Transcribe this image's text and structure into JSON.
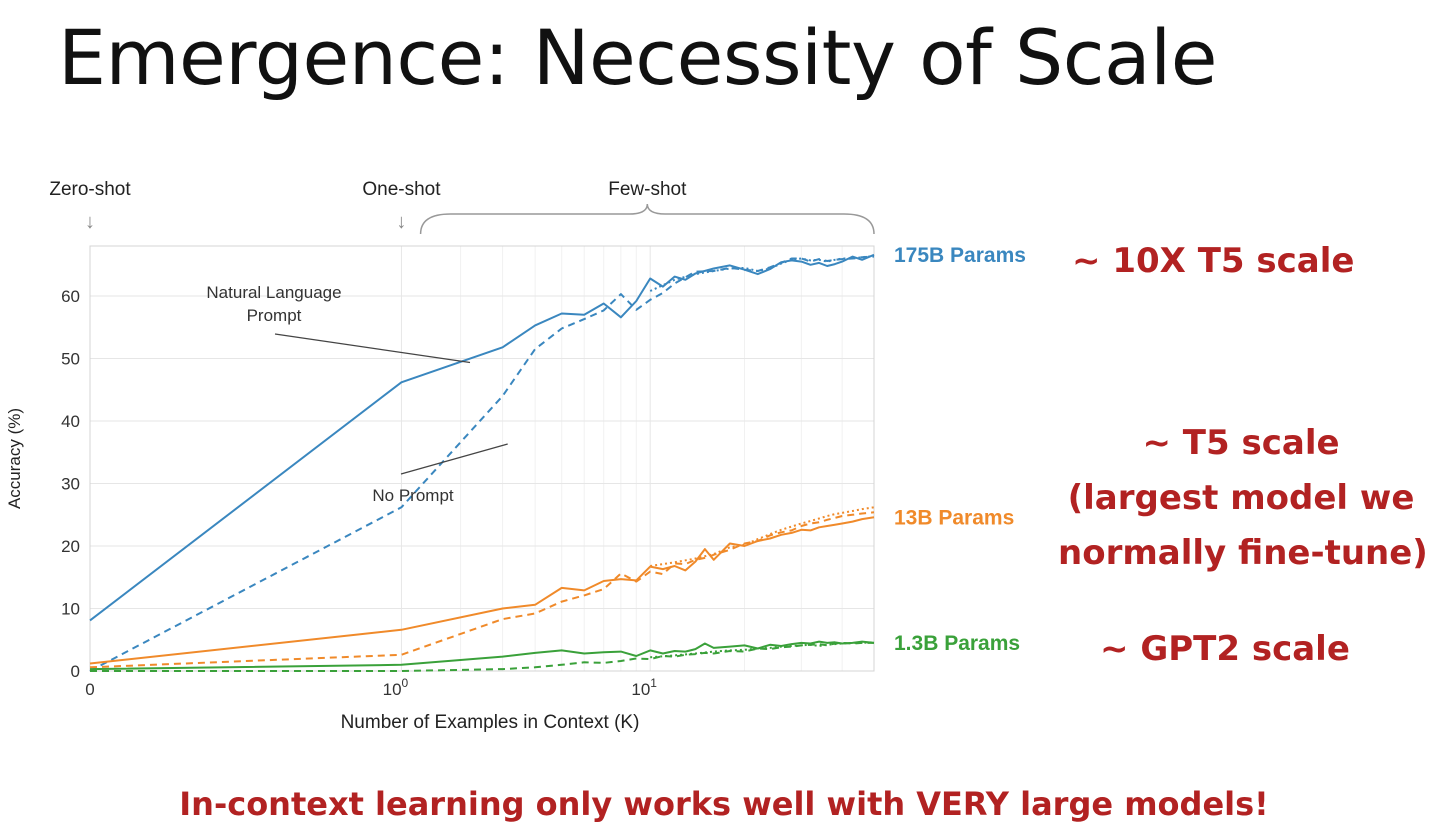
{
  "slide": {
    "title": "Emergence: Necessity of Scale",
    "footer": "In-context learning only works well with VERY large models!",
    "annotations": {
      "scale_175b": "~ 10X T5 scale",
      "scale_13b_lines": [
        "~ T5 scale",
        "(largest model we",
        "normally fine-tune)"
      ],
      "scale_1_3b": "~ GPT2 scale"
    },
    "colors": {
      "annotation": "#b22222"
    }
  },
  "chart_data": {
    "type": "line",
    "xlabel": "Number of Examples in Context  (K)",
    "ylabel": "Accuracy (%)",
    "x_scale": "symlog",
    "xlim": [
      0,
      50
    ],
    "ylim": [
      0,
      68
    ],
    "yticks": [
      0,
      10,
      20,
      30,
      40,
      50,
      60
    ],
    "xtick_labels": [
      {
        "value": 0,
        "label": "0"
      },
      {
        "value": 1,
        "label": "10",
        "sup": "0"
      },
      {
        "value": 10,
        "label": "10",
        "sup": "1"
      }
    ],
    "grid": true,
    "shot_labels": [
      {
        "label": "Zero-shot",
        "x": 0,
        "marker": "↓"
      },
      {
        "label": "One-shot",
        "x": 1,
        "marker": "↓"
      },
      {
        "label": "Few-shot",
        "x_range": [
          2,
          50
        ]
      }
    ],
    "text_annotations": [
      {
        "text_lines": [
          "Natural Language",
          "Prompt"
        ],
        "points_to": {
          "x": 2.2,
          "y": 50
        }
      },
      {
        "text_lines": [
          "No Prompt"
        ],
        "points_to": {
          "x": 3.2,
          "y": 36
        }
      }
    ],
    "model_groups": [
      {
        "name": "175B Params",
        "color": "#3a87bf",
        "series": [
          {
            "style": "solid",
            "x": [
              0,
              1,
              3,
              4,
              5,
              6,
              7,
              8,
              9,
              10,
              11,
              12,
              13,
              14,
              16,
              18,
              20,
              22,
              24,
              26,
              28,
              30,
              32,
              34,
              36,
              38,
              40,
              43,
              46,
              50
            ],
            "y": [
              8.1,
              46.2,
              51.8,
              55.3,
              57.2,
              57.0,
              58.8,
              56.6,
              59.2,
              62.8,
              61.5,
              63.1,
              62.6,
              63.6,
              64.4,
              64.9,
              64.2,
              63.5,
              64.3,
              65.4,
              65.7,
              65.5,
              65.0,
              65.3,
              64.8,
              65.1,
              65.5,
              66.3,
              65.8,
              66.6
            ]
          },
          {
            "style": "dashed",
            "x": [
              0,
              1,
              3,
              4,
              5,
              6,
              7,
              8,
              9,
              10,
              11,
              12,
              13,
              14,
              16,
              18,
              20,
              22,
              24,
              26,
              28,
              30,
              32,
              34,
              36,
              38,
              40,
              43,
              46,
              50
            ],
            "y": [
              0.0,
              26.2,
              44.0,
              51.5,
              54.8,
              56.3,
              57.7,
              60.3,
              57.8,
              59.4,
              60.5,
              62.0,
              63.0,
              63.9,
              64.0,
              64.5,
              64.2,
              64.0,
              64.6,
              65.3,
              66.0,
              66.0,
              65.5,
              65.9,
              65.6,
              65.8,
              65.9,
              66.0,
              66.2,
              66.3
            ]
          },
          {
            "style": "dotted",
            "x": [
              10,
              12,
              14,
              16,
              18,
              20,
              22,
              24,
              26,
              28,
              30,
              32,
              34,
              36,
              38,
              40,
              43,
              46,
              50
            ],
            "y": [
              60.8,
              62.6,
              63.5,
              64.0,
              64.4,
              64.5,
              64.0,
              64.4,
              65.2,
              65.8,
              66.0,
              65.7,
              65.8,
              65.5,
              65.8,
              66.0,
              66.0,
              66.2,
              66.4
            ]
          }
        ]
      },
      {
        "name": "13B Params",
        "color": "#f08a2a",
        "series": [
          {
            "style": "solid",
            "x": [
              0,
              1,
              3,
              4,
              5,
              6,
              7,
              8,
              9,
              10,
              11,
              12,
              13,
              14,
              15,
              16,
              18,
              20,
              22,
              24,
              26,
              28,
              30,
              32,
              34,
              36,
              38,
              40,
              43,
              46,
              50
            ],
            "y": [
              1.2,
              6.6,
              10.0,
              10.6,
              13.3,
              12.9,
              14.4,
              14.7,
              14.5,
              16.7,
              16.3,
              16.8,
              16.1,
              17.5,
              19.5,
              17.8,
              20.4,
              20.0,
              20.8,
              21.2,
              21.8,
              22.1,
              22.6,
              22.5,
              23.0,
              23.2,
              23.4,
              23.6,
              23.9,
              24.3,
              24.6
            ]
          },
          {
            "style": "dashed",
            "x": [
              0,
              1,
              3,
              4,
              5,
              6,
              7,
              8,
              9,
              10,
              11,
              12,
              13,
              14,
              15,
              16,
              18,
              20,
              22,
              24,
              26,
              28,
              30,
              32,
              34,
              36,
              38,
              40,
              43,
              46,
              50
            ],
            "y": [
              0.6,
              2.6,
              8.3,
              9.2,
              11.1,
              12.1,
              13.1,
              15.6,
              14.3,
              15.9,
              15.5,
              17.2,
              17.1,
              17.8,
              18.1,
              18.6,
              19.4,
              20.4,
              20.8,
              21.7,
              22.2,
              22.5,
              23.2,
              23.6,
              23.8,
              24.2,
              24.5,
              24.8,
              25.0,
              25.2,
              25.4
            ]
          },
          {
            "style": "dotted",
            "x": [
              10,
              12,
              14,
              16,
              18,
              20,
              22,
              24,
              26,
              28,
              30,
              32,
              34,
              36,
              38,
              40,
              43,
              46,
              50
            ],
            "y": [
              16.8,
              17.4,
              18.0,
              18.7,
              19.8,
              20.2,
              21.1,
              21.9,
              22.6,
              23.1,
              23.6,
              24.0,
              24.4,
              24.8,
              25.1,
              25.3,
              25.6,
              25.9,
              26.2
            ]
          }
        ]
      },
      {
        "name": "1.3B Params",
        "color": "#3aa13a",
        "series": [
          {
            "style": "solid",
            "x": [
              0,
              1,
              3,
              4,
              5,
              6,
              7,
              8,
              9,
              10,
              11,
              12,
              13,
              14,
              15,
              16,
              18,
              20,
              22,
              24,
              26,
              28,
              30,
              32,
              34,
              36,
              38,
              40,
              43,
              46,
              50
            ],
            "y": [
              0.3,
              1.0,
              2.3,
              2.9,
              3.3,
              2.8,
              3.0,
              3.1,
              2.4,
              3.3,
              2.8,
              3.2,
              3.1,
              3.5,
              4.4,
              3.7,
              3.9,
              4.1,
              3.6,
              4.2,
              4.0,
              4.3,
              4.5,
              4.4,
              4.7,
              4.5,
              4.6,
              4.4,
              4.5,
              4.7,
              4.5
            ]
          },
          {
            "style": "dashed",
            "x": [
              0,
              1,
              3,
              4,
              5,
              6,
              7,
              8,
              9,
              10,
              11,
              12,
              13,
              14,
              15,
              16,
              18,
              20,
              22,
              24,
              26,
              28,
              30,
              32,
              34,
              36,
              38,
              40,
              43,
              46,
              50
            ],
            "y": [
              0.0,
              0.0,
              0.3,
              0.6,
              1.0,
              1.4,
              1.3,
              1.6,
              2.0,
              1.9,
              2.4,
              2.3,
              2.6,
              2.7,
              2.9,
              2.8,
              3.2,
              3.1,
              3.6,
              3.5,
              3.8,
              3.9,
              4.1,
              4.2,
              4.3,
              4.1,
              4.4,
              4.5,
              4.4,
              4.5,
              4.5
            ]
          },
          {
            "style": "dotted",
            "x": [
              10,
              12,
              14,
              16,
              18,
              20,
              22,
              24,
              26,
              28,
              30,
              32,
              34,
              36,
              38,
              40,
              43,
              46,
              50
            ],
            "y": [
              2.2,
              2.5,
              2.8,
              3.1,
              3.3,
              3.4,
              3.6,
              3.7,
              3.9,
              4.0,
              4.1,
              4.2,
              4.0,
              4.2,
              4.3,
              4.4,
              4.5,
              4.5,
              4.6
            ]
          }
        ]
      }
    ]
  }
}
